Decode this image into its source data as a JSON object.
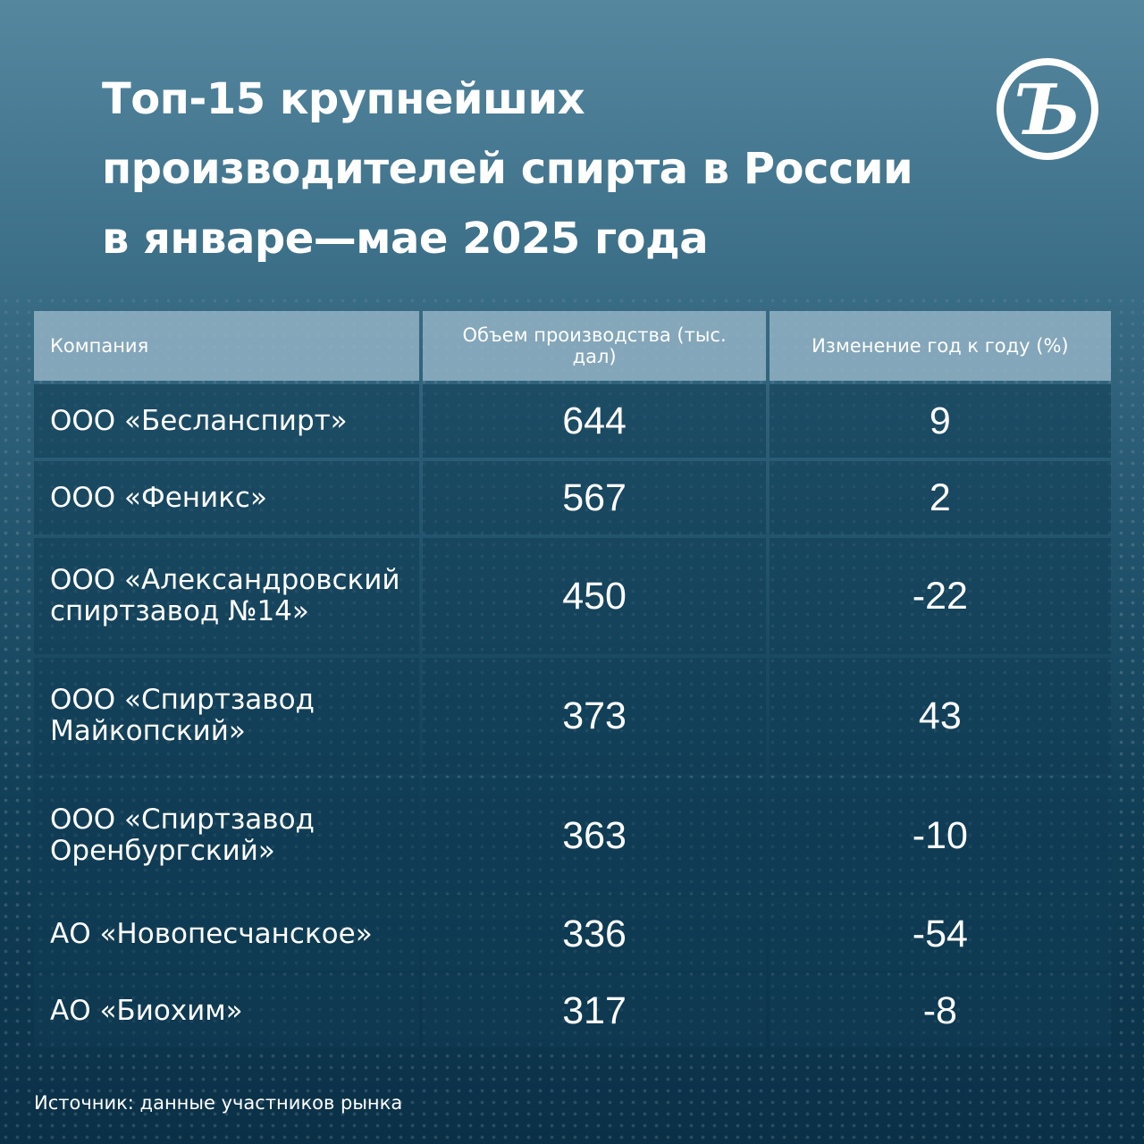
{
  "title": "Топ-15 крупнейших производителей спирта в России в январе—мае 2025 года",
  "logo": {
    "icon": "kommersant-logo-icon",
    "glyph": "Ъ"
  },
  "source": "Источник: данные участников рынка",
  "chart_data": {
    "type": "table",
    "title": "Топ-15 крупнейших производителей спирта в России в январе—мае 2025 года",
    "columns": [
      "Компания",
      "Объем производства (тыс. дал)",
      "Изменение год к году (%)"
    ],
    "rows": [
      {
        "company": "ООО «Бесланспирт»",
        "volume": 644,
        "change": 9
      },
      {
        "company": "ООО «Феникс»",
        "volume": 567,
        "change": 2
      },
      {
        "company": "ООО «Александровский спиртзавод №14»",
        "volume": 450,
        "change": -22
      },
      {
        "company": "ООО «Спиртзавод Майкопский»",
        "volume": 373,
        "change": 43
      },
      {
        "company": "ООО «Спиртзавод Оренбургский»",
        "volume": 363,
        "change": -10
      },
      {
        "company": "АО «Новопесчанское»",
        "volume": 336,
        "change": -54
      },
      {
        "company": "АО «Биохим»",
        "volume": 317,
        "change": -8
      }
    ]
  }
}
